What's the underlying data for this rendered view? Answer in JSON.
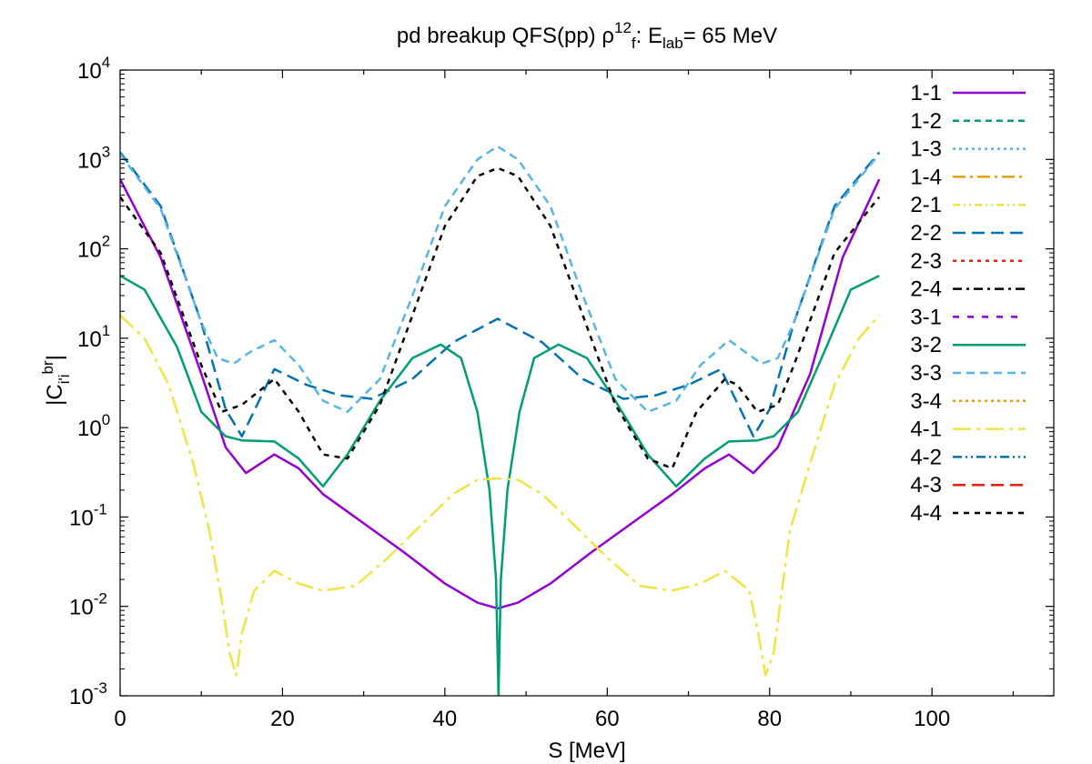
{
  "chart_data": {
    "type": "line",
    "title": {
      "prefix": "pd breakup QFS(pp) ρ",
      "rho_superscript": "12",
      "rho_subscript": "f",
      "mid": ": E",
      "e_subscript": "lab",
      "suffix": "=   65 MeV"
    },
    "xlabel": "S [MeV]",
    "ylabel": {
      "open": "|",
      "base": "C",
      "subscript": "i'i",
      "superscript": "br",
      "close": "|"
    },
    "xlim": [
      0,
      115
    ],
    "ylim": [
      0.001,
      10000
    ],
    "yscale": "log",
    "x_ticks": [
      {
        "value": 0,
        "label": "0"
      },
      {
        "value": 20,
        "label": "20"
      },
      {
        "value": 40,
        "label": "40"
      },
      {
        "value": 60,
        "label": "60"
      },
      {
        "value": 80,
        "label": "80"
      },
      {
        "value": 100,
        "label": "100"
      }
    ],
    "y_ticks": [
      {
        "value": 10000,
        "base": "10",
        "exp": "4"
      },
      {
        "value": 1000,
        "base": "10",
        "exp": "3"
      },
      {
        "value": 100,
        "base": "10",
        "exp": "2"
      },
      {
        "value": 10,
        "base": "10",
        "exp": "1"
      },
      {
        "value": 1,
        "base": "10",
        "exp": "0"
      },
      {
        "value": 0.1,
        "base": "10",
        "exp": "-1"
      },
      {
        "value": 0.01,
        "base": "10",
        "exp": "-2"
      },
      {
        "value": 0.001,
        "base": "10",
        "exp": "-3"
      }
    ],
    "legend_position": "top-right",
    "grid": false,
    "series": [
      {
        "name": "1-1",
        "color": "#9400d3",
        "dash": "solid",
        "x": [
          0,
          5,
          10,
          13,
          15.5,
          19,
          22,
          25,
          30,
          35,
          40,
          44,
          46.5,
          49,
          53,
          58,
          63,
          68,
          72,
          75,
          78,
          81,
          85,
          89,
          93.5
        ],
        "y": [
          600,
          80,
          4,
          0.6,
          0.31,
          0.5,
          0.35,
          0.18,
          0.085,
          0.04,
          0.018,
          0.011,
          0.0095,
          0.011,
          0.018,
          0.04,
          0.085,
          0.18,
          0.35,
          0.5,
          0.31,
          0.6,
          4,
          80,
          600
        ]
      },
      {
        "name": "1-2",
        "color": "#009e73",
        "dash": "7,5",
        "x": [],
        "y": []
      },
      {
        "name": "1-3",
        "color": "#56b4e9",
        "dash": "3,4",
        "x": [],
        "y": []
      },
      {
        "name": "1-4",
        "color": "#e69f00",
        "dash": "14,5,3,5",
        "x": [],
        "y": []
      },
      {
        "name": "2-1",
        "color": "#f0e442",
        "dash": "8,4,2,4,2,4",
        "x": [],
        "y": []
      },
      {
        "name": "2-2",
        "color": "#0072b2",
        "dash": "14,7",
        "x": [
          0,
          5,
          10,
          13,
          15,
          19,
          23,
          27,
          31,
          36,
          41,
          46.5,
          52,
          57,
          62,
          66,
          70,
          74,
          78,
          80,
          83,
          88,
          93.5
        ],
        "y": [
          1200,
          300,
          15,
          1.6,
          0.8,
          4.5,
          3,
          2.3,
          2.1,
          3.5,
          9,
          16.5,
          9,
          3.5,
          2.1,
          2.3,
          3,
          4.5,
          0.8,
          1.6,
          15,
          300,
          1200
        ]
      },
      {
        "name": "2-3",
        "color": "#e51e10",
        "dash": "4,5",
        "x": [],
        "y": []
      },
      {
        "name": "2-4",
        "color": "#000000",
        "dash": "10,5,3,5",
        "x": [],
        "y": []
      },
      {
        "name": "3-1",
        "color": "#9400d3",
        "dash": "7,9",
        "x": [],
        "y": []
      },
      {
        "name": "3-2",
        "color": "#009e73",
        "dash": "solid",
        "x": [
          0,
          3,
          7,
          10,
          13,
          15,
          19,
          22,
          25,
          28,
          32,
          36,
          39.5,
          42,
          44,
          45.5,
          46.3,
          46.6,
          46.9,
          47.7,
          49.2,
          51,
          54,
          57.5,
          61,
          65,
          68.5,
          72,
          75,
          78.5,
          80.5,
          83.5,
          87,
          90,
          93.5
        ],
        "y": [
          50,
          35,
          8,
          1.5,
          0.8,
          0.72,
          0.7,
          0.45,
          0.22,
          0.5,
          2,
          6,
          8.5,
          6,
          1.5,
          0.2,
          0.02,
          0.001,
          0.02,
          0.2,
          1.5,
          6,
          8.5,
          6,
          2,
          0.5,
          0.22,
          0.45,
          0.7,
          0.72,
          0.8,
          1.5,
          8,
          35,
          50
        ]
      },
      {
        "name": "3-3",
        "color": "#56b4e9",
        "dash": "9,6",
        "x": [
          0,
          5,
          10,
          12,
          14,
          16,
          19,
          22,
          25,
          28,
          32,
          36,
          40,
          44,
          46.5,
          49,
          53,
          57,
          61,
          65,
          68.5,
          71.5,
          75,
          77,
          79,
          81,
          83,
          88,
          93.5
        ],
        "y": [
          1150,
          280,
          15,
          6,
          5.2,
          7,
          9.5,
          5,
          2,
          1.5,
          3.5,
          30,
          300,
          1000,
          1400,
          1000,
          300,
          30,
          3.5,
          1.5,
          2,
          5,
          9.5,
          7,
          5.2,
          6,
          15,
          280,
          1150
        ]
      },
      {
        "name": "3-4",
        "color": "#e69f00",
        "dash": "3,4",
        "x": [],
        "y": []
      },
      {
        "name": "4-1",
        "color": "#f0e442",
        "dash": "20,6,4,6",
        "x": [
          0,
          3,
          6,
          9,
          11,
          12.5,
          13.5,
          14.3,
          15,
          16.5,
          19,
          22,
          25,
          29,
          33,
          37,
          41,
          44,
          46.5,
          49,
          52,
          56,
          60,
          64,
          68,
          71.5,
          74.5,
          77.5,
          78.6,
          79.5,
          80.5,
          82.5,
          85,
          88,
          91,
          93.5
        ],
        "y": [
          18,
          10,
          3,
          0.4,
          0.07,
          0.012,
          0.003,
          0.0017,
          0.005,
          0.015,
          0.025,
          0.018,
          0.015,
          0.017,
          0.035,
          0.08,
          0.18,
          0.26,
          0.27,
          0.26,
          0.18,
          0.08,
          0.035,
          0.017,
          0.015,
          0.018,
          0.025,
          0.015,
          0.005,
          0.0017,
          0.003,
          0.07,
          0.4,
          3,
          10,
          18
        ]
      },
      {
        "name": "4-2",
        "color": "#0072b2",
        "dash": "10,4,2,4,2,4",
        "x": [],
        "y": []
      },
      {
        "name": "4-3",
        "color": "#e51e10",
        "dash": "14,7",
        "x": [],
        "y": []
      },
      {
        "name": "4-4",
        "color": "#000000",
        "dash": "6,6",
        "x": [
          0,
          5,
          10,
          12.5,
          15,
          19,
          22,
          25,
          28,
          32,
          36,
          40,
          44,
          46.5,
          49,
          53,
          57,
          61,
          65,
          68,
          71,
          74.5,
          76,
          78.5,
          81,
          83,
          88,
          93.5
        ],
        "y": [
          380,
          90,
          5,
          1.5,
          1.8,
          3.5,
          1.5,
          0.5,
          0.45,
          1.8,
          18,
          180,
          650,
          800,
          650,
          180,
          18,
          1.8,
          0.45,
          0.35,
          1.5,
          3.5,
          3,
          1.5,
          1.8,
          5,
          90,
          380
        ]
      }
    ]
  }
}
